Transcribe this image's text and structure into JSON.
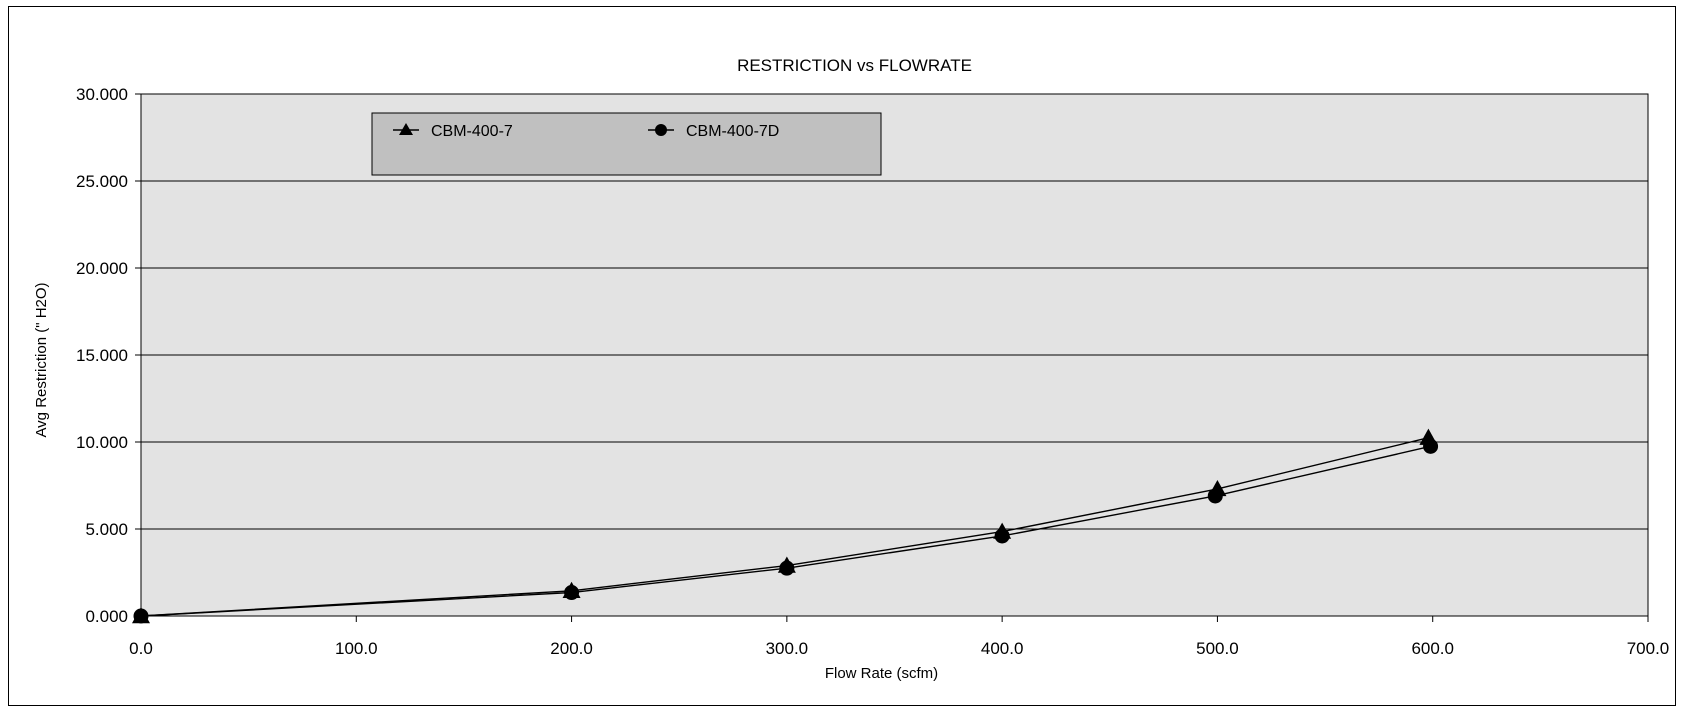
{
  "chart_data": {
    "type": "line",
    "title": "RESTRICTION vs FLOWRATE",
    "xlabel": "Flow Rate (scfm)",
    "ylabel": "Avg Restriction (\" H2O)",
    "xlim": [
      0,
      700
    ],
    "ylim": [
      0,
      30
    ],
    "x_ticks": [
      "0.0",
      "100.0",
      "200.0",
      "300.0",
      "400.0",
      "500.0",
      "600.0",
      "700.0"
    ],
    "y_ticks": [
      "0.000",
      "5.000",
      "10.000",
      "15.000",
      "20.000",
      "25.000",
      "30.000"
    ],
    "x_tick_values": [
      0,
      100,
      200,
      300,
      400,
      500,
      600,
      700
    ],
    "y_tick_values": [
      0,
      5,
      10,
      15,
      20,
      25,
      30
    ],
    "grid": "horizontal",
    "legend_position": "top-left",
    "plot_background": "#e3e3e3",
    "legend_background": "#c0c0c0",
    "series": [
      {
        "name": "CBM-400-7",
        "marker": "triangle",
        "points": [
          [
            0,
            0.0
          ],
          [
            200,
            1.45
          ],
          [
            300,
            2.9
          ],
          [
            400,
            4.85
          ],
          [
            500,
            7.3
          ],
          [
            598,
            10.25
          ]
        ]
      },
      {
        "name": "CBM-400-7D",
        "marker": "circle",
        "points": [
          [
            0,
            0.0
          ],
          [
            200,
            1.35
          ],
          [
            300,
            2.75
          ],
          [
            400,
            4.6
          ],
          [
            499,
            6.9
          ],
          [
            599,
            9.75
          ]
        ]
      }
    ]
  }
}
